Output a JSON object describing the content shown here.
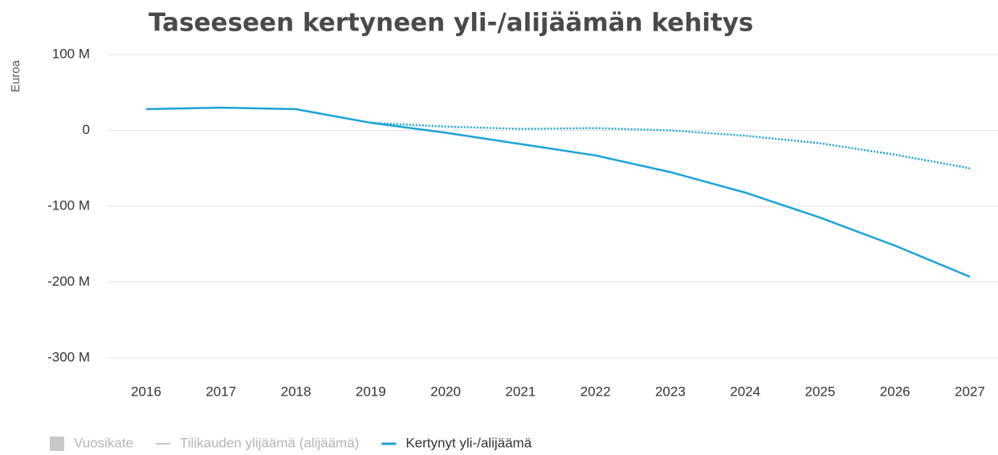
{
  "chart_data": {
    "type": "line",
    "title": "Taseeseen kertyneen yli-/alijäämän kehitys",
    "y_label": "Euroa",
    "categories": [
      "2016",
      "2017",
      "2018",
      "2019",
      "2020",
      "2021",
      "2022",
      "2023",
      "2024",
      "2025",
      "2026",
      "2027"
    ],
    "series": [
      {
        "name": "Kertynyt yli-/alijäämä",
        "color": "#1ba3d6",
        "style": "solid",
        "values": [
          28,
          30,
          28,
          10,
          -3,
          -18,
          -33,
          -55,
          -82,
          -115,
          -152,
          -193
        ]
      },
      {
        "color": "#1ba3d6",
        "style": "dotted",
        "values": [
          null,
          null,
          null,
          10,
          5,
          2,
          3,
          0,
          -7,
          -17,
          -32,
          -50
        ]
      }
    ],
    "legend": [
      {
        "name": "Vuosikate",
        "color": "#c8c8c8",
        "symbol": "square"
      },
      {
        "name": "Tilikauden ylijäämä (alijäämä)",
        "color": "#c8c8c8",
        "symbol": "line"
      }
    ],
    "ylim": [
      -300,
      100
    ],
    "yticks": [
      {
        "value": -300,
        "label": "-300 M"
      },
      {
        "value": -200,
        "label": "-200 M"
      },
      {
        "value": -100,
        "label": "-100 M"
      },
      0,
      {
        "value": 100,
        "label": "100 M"
      }
    ],
    "grid": true
  }
}
